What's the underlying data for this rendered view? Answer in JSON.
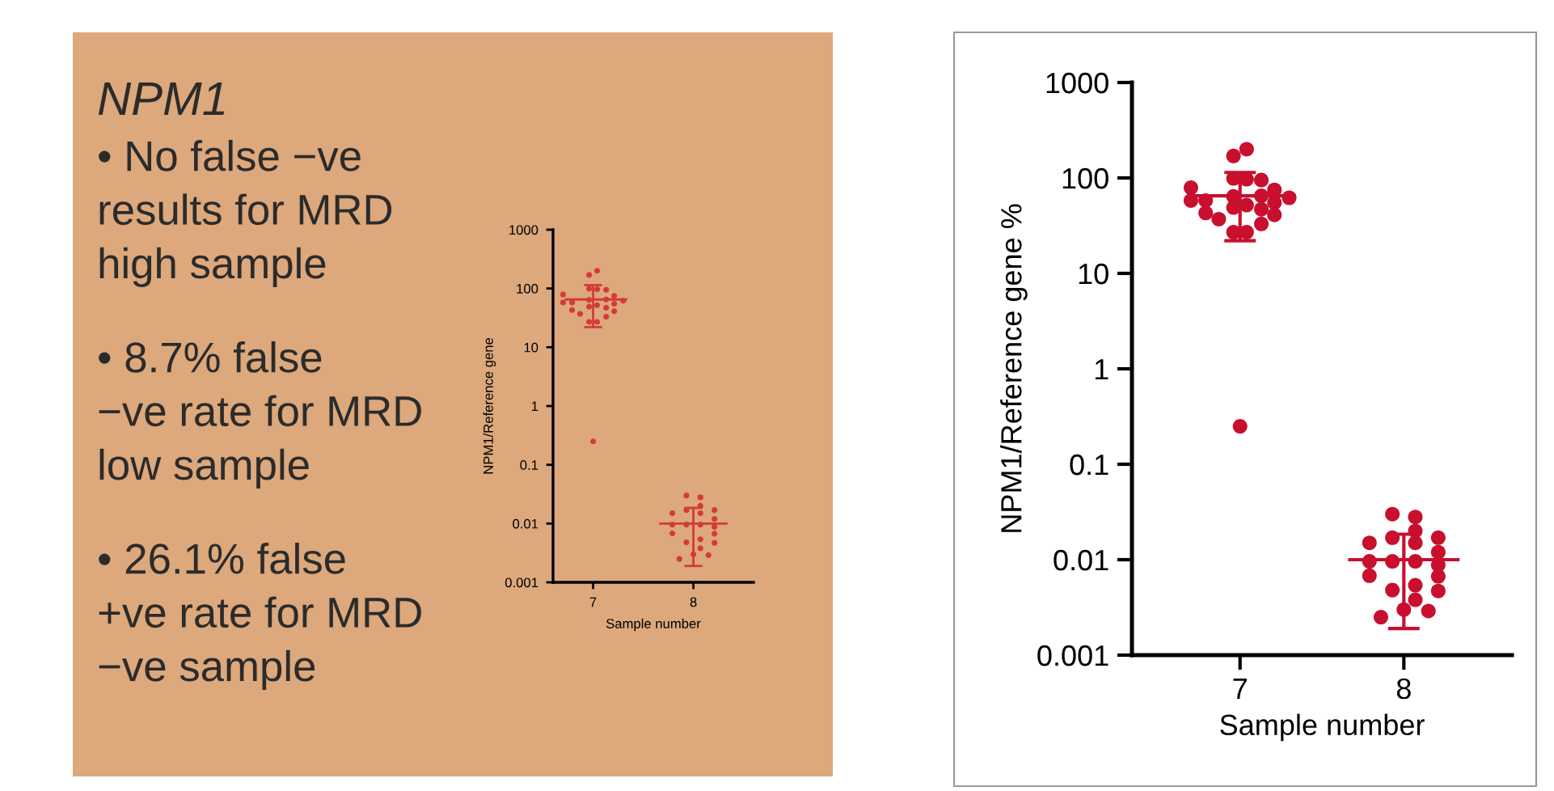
{
  "chart_data": [
    {
      "type": "other",
      "title": "NPM1",
      "annotations": [
        "• No false −ve\nresults for MRD\nhigh sample",
        "• 8.7% false\n−ve rate for MRD\nlow sample",
        "• 26.1% false\n+ve rate for MRD\n−ve sample"
      ]
    },
    {
      "type": "scatter",
      "xlabel": "Sample number",
      "ylabel": "NPM1/Reference gene %",
      "log": "y",
      "ylim": [
        0.001,
        1000
      ],
      "yticks": [
        0.001,
        0.01,
        0.1,
        1,
        10,
        100,
        1000
      ],
      "xlim": [
        6.34,
        8.66
      ],
      "xticks": [
        7,
        8
      ],
      "grid": false,
      "legend": false,
      "series": [
        {
          "color": "#c8102e",
          "marker": "circle",
          "x": [
            7.04,
            6.96,
            6.96,
            7.04,
            7.13,
            6.7,
            7.21,
            6.7,
            6.79,
            6.96,
            7.13,
            7.3,
            7.21,
            7.04,
            6.96,
            7.13,
            6.79,
            7.21,
            6.87,
            7.13,
            6.96,
            7.04,
            7.0,
            7.93,
            8.07,
            8.07,
            7.93,
            8.21,
            7.79,
            8.07,
            8.21,
            7.79,
            7.93,
            8.07,
            8.21,
            7.79,
            8.21,
            8.07,
            7.93,
            8.21,
            8.07,
            8.0,
            8.15,
            7.86
          ],
          "values": [
            200,
            170,
            99,
            97,
            95,
            79,
            75,
            58,
            58,
            64,
            65,
            62,
            55,
            52,
            49,
            47,
            43,
            41,
            37,
            33,
            27,
            27,
            0.25,
            0.03,
            0.028,
            0.02,
            0.017,
            0.017,
            0.015,
            0.015,
            0.012,
            0.0096,
            0.0096,
            0.0096,
            0.0088,
            0.0068,
            0.0067,
            0.0054,
            0.0048,
            0.0047,
            0.0038,
            0.003,
            0.0029,
            0.0025
          ]
        },
        {
          "type": "line",
          "color": "#c8102e",
          "marker": "none",
          "x": [
            6.73,
            7,
            7.33
          ],
          "values": [
            65,
            65,
            65
          ],
          "errors": [
            null,
            [
              22,
              114
            ],
            null
          ]
        },
        {
          "type": "line",
          "color": "#c8102e",
          "marker": "none",
          "x": [
            7.67,
            8,
            8.33
          ],
          "values": [
            0.01,
            0.01,
            0.01
          ],
          "errors": [
            null,
            [
              0.0019,
              0.0185
            ],
            null
          ]
        }
      ]
    },
    {
      "type": "scatter",
      "xlabel": "Sample number",
      "ylabel": "NPM1/Reference gene",
      "log": "y",
      "ylim": [
        0.001,
        1000
      ],
      "yticks": [
        0.001,
        0.01,
        0.1,
        1,
        10,
        100,
        1000
      ],
      "xlim": [
        6.6,
        8.6
      ],
      "xticks": [
        7,
        8
      ],
      "grid": false,
      "legend": false,
      "series": [
        {
          "color": "#d43a3c",
          "marker": "circle",
          "x": [
            7.04,
            6.96,
            6.96,
            7.04,
            7.13,
            6.7,
            7.21,
            6.7,
            6.79,
            6.96,
            7.13,
            7.3,
            7.21,
            7.04,
            6.96,
            7.13,
            6.79,
            7.21,
            6.87,
            7.13,
            6.96,
            7.04,
            7.0,
            7.93,
            8.07,
            8.07,
            7.93,
            8.21,
            7.79,
            8.07,
            8.21,
            7.79,
            7.93,
            8.07,
            8.21,
            7.79,
            8.21,
            8.07,
            7.93,
            8.21,
            8.07,
            8.0,
            8.15,
            7.86
          ],
          "values": [
            200,
            170,
            99,
            97,
            95,
            79,
            75,
            58,
            58,
            64,
            65,
            62,
            55,
            52,
            49,
            47,
            43,
            41,
            37,
            33,
            27,
            27,
            0.25,
            0.03,
            0.028,
            0.02,
            0.017,
            0.017,
            0.015,
            0.015,
            0.012,
            0.0096,
            0.0096,
            0.0096,
            0.0088,
            0.0068,
            0.0067,
            0.0054,
            0.0048,
            0.0047,
            0.0038,
            0.003,
            0.0029,
            0.0025
          ]
        },
        {
          "type": "line",
          "color": "#d43a3c",
          "marker": "none",
          "x": [
            6.73,
            7,
            7.33
          ],
          "values": [
            65,
            65,
            65
          ],
          "errors": [
            null,
            [
              22,
              114
            ],
            null
          ]
        },
        {
          "type": "line",
          "color": "#d43a3c",
          "marker": "none",
          "x": [
            7.67,
            8,
            8.33
          ],
          "values": [
            0.01,
            0.01,
            0.01
          ],
          "errors": [
            null,
            [
              0.0019,
              0.0185
            ],
            null
          ]
        }
      ]
    }
  ]
}
